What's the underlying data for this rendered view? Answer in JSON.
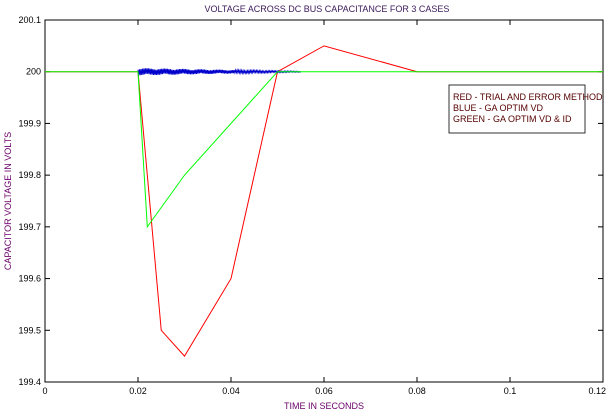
{
  "chart_data": {
    "type": "line",
    "title": "VOLTAGE ACROSS DC BUS CAPACITANCE FOR 3 CASES",
    "xlabel": "TIME IN SECONDS",
    "ylabel": "CAPACITOR VOLTAGE IN VOLTS",
    "xlim": [
      0,
      0.12
    ],
    "ylim": [
      199.4,
      200.1
    ],
    "x_ticks": [
      "0",
      "0.02",
      "0.04",
      "0.06",
      "0.08",
      "0.1",
      "0.12"
    ],
    "y_ticks": [
      "199.4",
      "199.5",
      "199.6",
      "199.7",
      "199.8",
      "199.9",
      "200",
      "200.1"
    ],
    "grid": false,
    "legend_position": "top-right",
    "legend": [
      "RED - TRIAL AND ERROR METHOD",
      "BLUE - GA OPTIM VD",
      "GREEN - GA OPTIM VD & ID"
    ],
    "series": [
      {
        "color": "#ff0000",
        "x": [
          0,
          0.02,
          0.025,
          0.03,
          0.04,
          0.05,
          0.06,
          0.08,
          0.12
        ],
        "y": [
          200,
          200,
          199.5,
          199.45,
          199.6,
          200,
          200.05,
          200,
          200
        ]
      },
      {
        "color": "#0000cc",
        "noisy": true,
        "x": [
          0.02,
          0.055
        ],
        "y": [
          200,
          200
        ],
        "amplitude_start": 0.007,
        "amplitude_end": 0.0008
      },
      {
        "color": "#00ff00",
        "x": [
          0,
          0.02,
          0.022,
          0.03,
          0.05,
          0.12
        ],
        "y": [
          200,
          200,
          199.7,
          199.8,
          200,
          200
        ]
      }
    ]
  }
}
